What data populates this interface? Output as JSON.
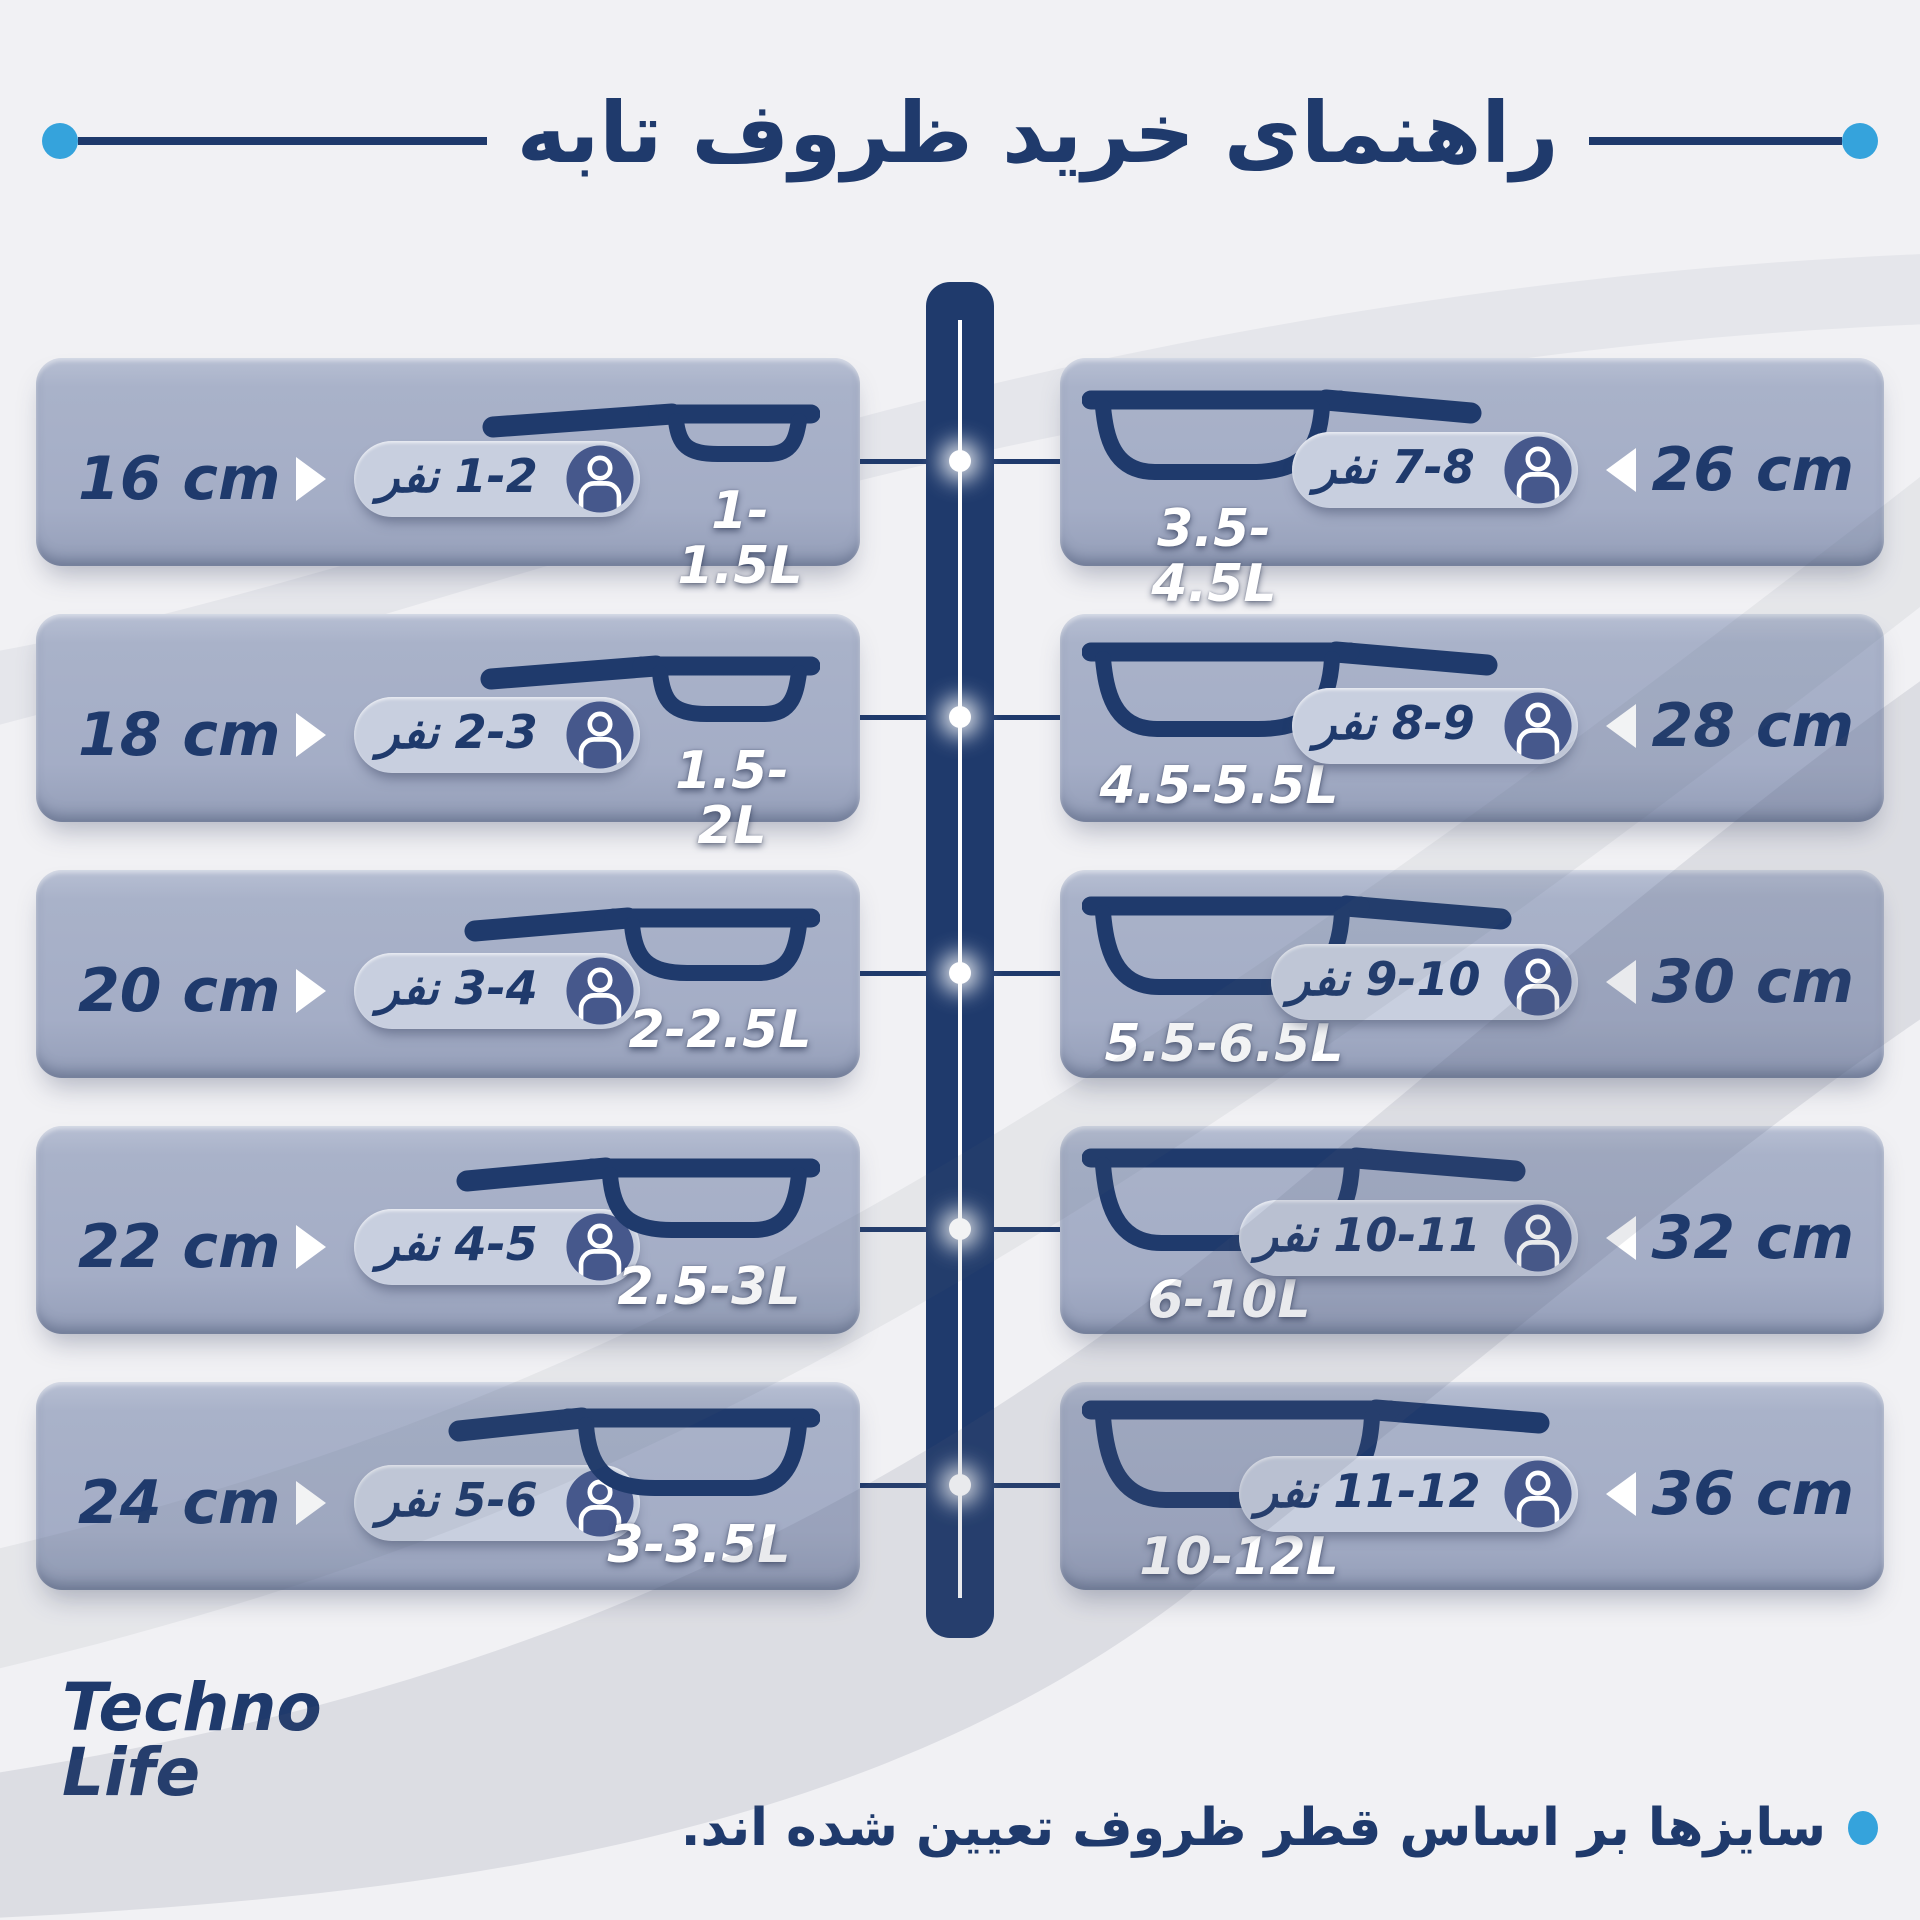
{
  "title": "راهنمای خرید ظروف تابه",
  "rows": {
    "left": [
      {
        "size": "16 cm",
        "people": "1-2 نفر",
        "liters": "1-1.5L"
      },
      {
        "size": "18 cm",
        "people": "2-3 نفر",
        "liters": "1.5-2L"
      },
      {
        "size": "20 cm",
        "people": "3-4 نفر",
        "liters": "2-2.5L"
      },
      {
        "size": "22 cm",
        "people": "4-5 نفر",
        "liters": "2.5-3L"
      },
      {
        "size": "24 cm",
        "people": "5-6 نفر",
        "liters": "3-3.5L"
      }
    ],
    "right": [
      {
        "size": "26 cm",
        "people": "7-8 نفر",
        "liters": "3.5-4.5L"
      },
      {
        "size": "28 cm",
        "people": "8-9 نفر",
        "liters": "4.5-5.5L"
      },
      {
        "size": "30 cm",
        "people": "9-10 نفر",
        "liters": "5.5-6.5L"
      },
      {
        "size": "32 cm",
        "people": "10-11 نفر",
        "liters": "6-10L"
      },
      {
        "size": "36 cm",
        "people": "11-12 نفر",
        "liters": "10-12L"
      }
    ]
  },
  "footer": {
    "note": "سایزها بر اساس قطر ظروف تعیین شده اند.",
    "logo_line1": "Techno",
    "logo_line2": "Life"
  },
  "icons": {
    "person": "person-icon",
    "pan": "frying-pan-icon",
    "triangle_right": "▶",
    "triangle_left": "◀",
    "bullet": "●"
  },
  "colors": {
    "navy": "#1f3a6c",
    "accent_blue": "#35a3dc",
    "card": "#a9b2c9",
    "pill": "#c8cfdf",
    "icon_circle": "#46588c",
    "background": "#f1f1f4"
  }
}
